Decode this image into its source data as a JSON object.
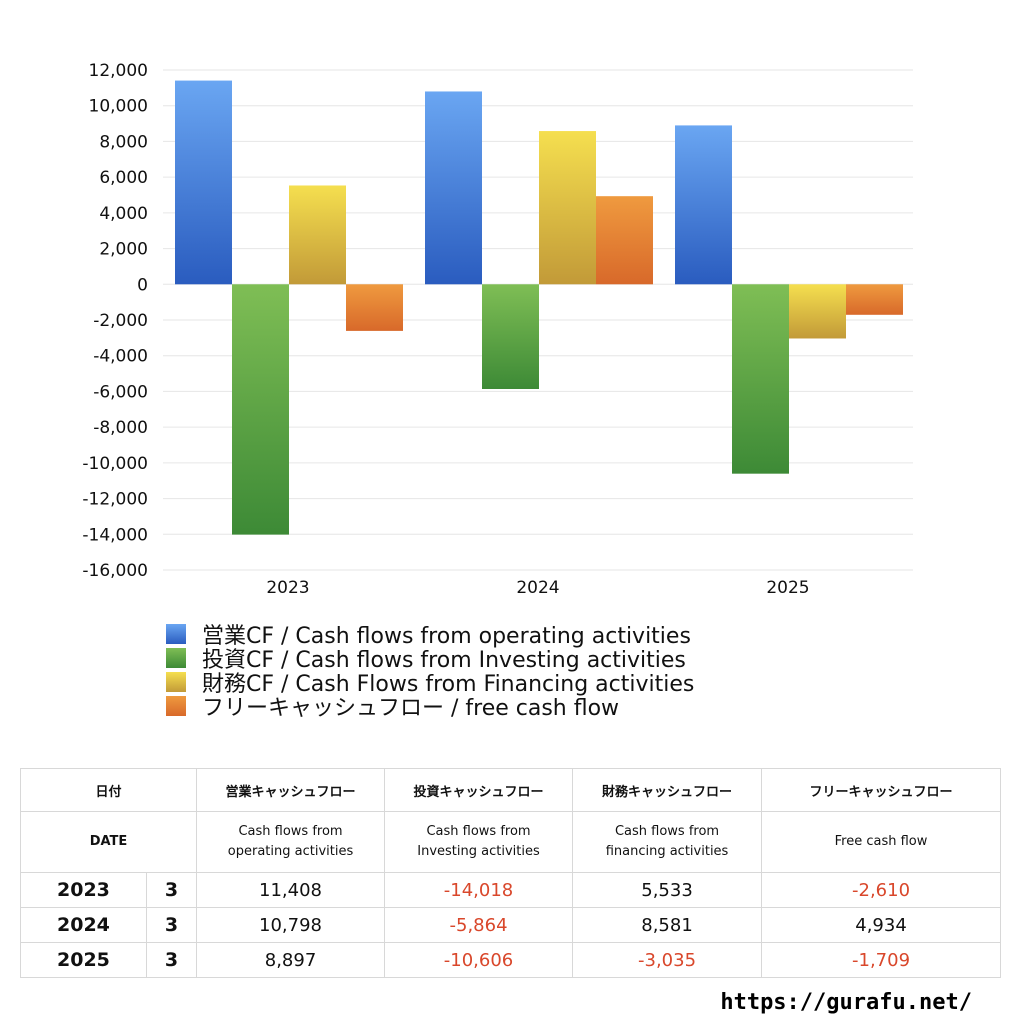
{
  "chart_data": {
    "type": "bar",
    "categories": [
      "2023",
      "2024",
      "2025"
    ],
    "series": [
      {
        "name": "営業CF / Cash flows from operating activities",
        "values": [
          11408,
          10798,
          8897
        ],
        "color_top": "#6aa6f2",
        "color_bottom": "#2a5cbf"
      },
      {
        "name": "投資CF / Cash flows from Investing activities",
        "values": [
          -14018,
          -5864,
          -10606
        ],
        "color_top": "#7fbe55",
        "color_bottom": "#3d8a36"
      },
      {
        "name": "財務CF / Cash Flows from Financing activities",
        "values": [
          5533,
          8581,
          -3035
        ],
        "color_top": "#f5df4f",
        "color_bottom": "#c29a38"
      },
      {
        "name": "フリーキャッシュフロー / free cash flow",
        "values": [
          -2610,
          4934,
          -1709
        ],
        "color_top": "#ef9a3f",
        "color_bottom": "#d8692a"
      }
    ],
    "ylim": [
      -16000,
      12000
    ],
    "yticks": [
      "12,000",
      "10,000",
      "8,000",
      "6,000",
      "4,000",
      "2,000",
      "0",
      "-2,000",
      "-4,000",
      "-6,000",
      "-8,000",
      "-10,000",
      "-12,000",
      "-14,000",
      "-16,000"
    ],
    "grid": true,
    "legend_placement": "bottom"
  },
  "table": {
    "header_jp": [
      "日付",
      "営業キャッシュフロー",
      "投資キャッシュフロー",
      "財務キャッシュフロー",
      "フリーキャッシュフロー"
    ],
    "header_en_date": "DATE",
    "header_en": [
      [
        "Cash flows from",
        "operating activities"
      ],
      [
        "Cash flows from",
        "Investing activities"
      ],
      [
        "Cash flows from",
        "financing activities"
      ],
      [
        "Free cash flow",
        ""
      ]
    ],
    "rows": [
      {
        "year": "2023",
        "month": "3",
        "values": [
          "11,408",
          "-14,018",
          "5,533",
          "-2,610"
        ]
      },
      {
        "year": "2024",
        "month": "3",
        "values": [
          "10,798",
          "-5,864",
          "8,581",
          "4,934"
        ]
      },
      {
        "year": "2025",
        "month": "3",
        "values": [
          "8,897",
          "-10,606",
          "-3,035",
          "-1,709"
        ]
      }
    ]
  },
  "watermark": "https://gurafu.net/"
}
